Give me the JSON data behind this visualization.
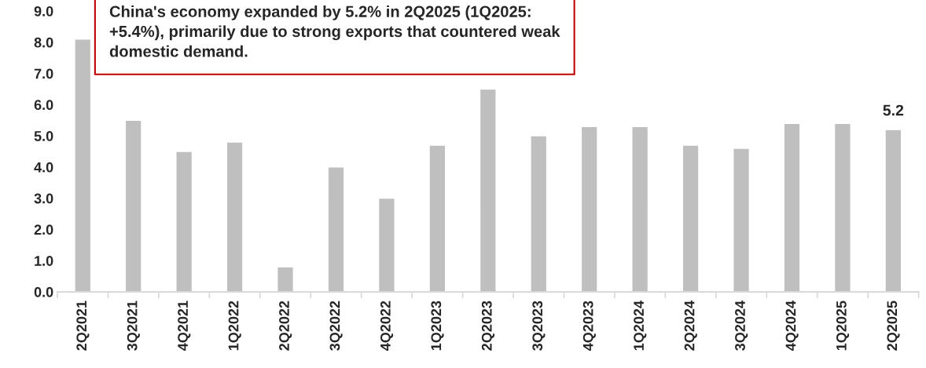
{
  "chart_data": {
    "type": "bar",
    "categories": [
      "2Q2021",
      "3Q2021",
      "4Q2021",
      "1Q2022",
      "2Q2022",
      "3Q2022",
      "4Q2022",
      "1Q2023",
      "2Q2023",
      "3Q2023",
      "4Q2023",
      "1Q2024",
      "2Q2024",
      "3Q2024",
      "4Q2024",
      "1Q2025",
      "2Q2025"
    ],
    "values": [
      8.1,
      5.5,
      4.5,
      4.8,
      0.8,
      4.0,
      3.0,
      4.7,
      6.5,
      5.0,
      5.3,
      5.3,
      4.7,
      4.6,
      5.4,
      5.4,
      5.2
    ],
    "color": "#bfbfbf",
    "value_labels": [
      null,
      null,
      null,
      null,
      null,
      null,
      null,
      null,
      null,
      null,
      null,
      null,
      null,
      null,
      null,
      null,
      "5.2"
    ],
    "ylim": [
      0,
      9
    ],
    "yticks": [
      {
        "value": 0,
        "label": "0.0"
      },
      {
        "value": 1,
        "label": "1.0"
      },
      {
        "value": 2,
        "label": "2.0"
      },
      {
        "value": 3,
        "label": "3.0"
      },
      {
        "value": 4,
        "label": "4.0"
      },
      {
        "value": 5,
        "label": "5.0"
      },
      {
        "value": 6,
        "label": "6.0"
      },
      {
        "value": 7,
        "label": "7.0"
      },
      {
        "value": 8,
        "label": "8.0"
      },
      {
        "value": 9,
        "label": "9.0"
      }
    ],
    "grid": false,
    "annotations": [
      "China's economy expanded by 5.2% in 2Q2025 (1Q2025: +5.4%), primarily due to strong exports that countered weak domestic demand."
    ]
  }
}
